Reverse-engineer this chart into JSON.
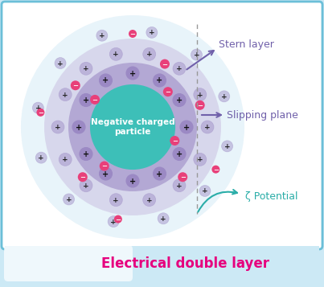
{
  "fig_width": 4.03,
  "fig_height": 3.57,
  "dpi": 100,
  "bg_outer": "#cce9f5",
  "bg_inner": "#ffffff",
  "border_color": "#6bbfd8",
  "title_text": "Electrical double layer",
  "title_color": "#e6007e",
  "title_fontsize": 12,
  "particle_color": "#3dbfb8",
  "particle_text": "Negative charged\nparticle",
  "particle_text_color": "white",
  "stern_color": "#9b89c4",
  "outer_shell_color": "#c8bcdf",
  "big_outer_color": "#e8f4fa",
  "pos_ion_color": "#9b89c4",
  "pos_ion_edge": "#6a5a9a",
  "neg_ion_color": "#e8407a",
  "label_stern": "Stern layer",
  "label_slip": "Slipping plane",
  "label_zeta": "ζ Potential",
  "label_color_stern": "#7060aa",
  "label_color_slip": "#7060aa",
  "label_color_zeta": "#2aada8",
  "dashed_line_color": "#999999"
}
